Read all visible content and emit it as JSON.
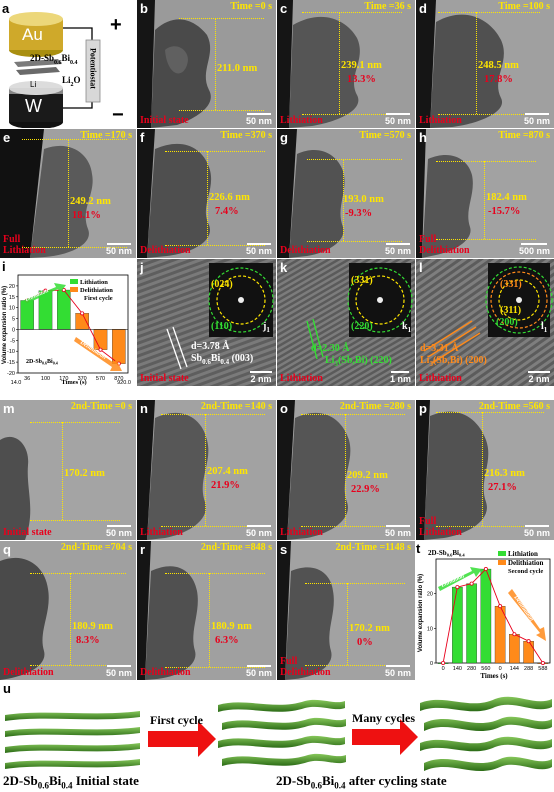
{
  "schematic": {
    "label": "a",
    "au": "Au",
    "material": "2D-Sb",
    "material_sub1": "0.6",
    "material_mid": "Bi",
    "material_sub2": "0.4",
    "li": "Li",
    "li2o": "Li",
    "li2o_sub": "2",
    "li2o_end": "O",
    "w": "W",
    "potentiostat": "Potentiostat",
    "plus": "+",
    "minus": "−"
  },
  "panels_row1": [
    {
      "label": "b",
      "time": "Time =0 s",
      "length": "211.0 nm",
      "pct": "",
      "state": "Initial state",
      "scale": "50 nm"
    },
    {
      "label": "c",
      "time": "Time =36 s",
      "length": "239.1 nm",
      "pct": "13.3%",
      "state": "Lithiation",
      "scale": "50 nm"
    },
    {
      "label": "d",
      "time": "Time =100 s",
      "length": "248.5 nm",
      "pct": "17.8%",
      "state": "Lithiation",
      "scale": "50 nm"
    }
  ],
  "panels_row2": [
    {
      "label": "e",
      "time": "Time =170 s",
      "length": "249.2 nm",
      "pct": "18.1%",
      "state": "Full\nLithiation",
      "scale": "50 nm"
    },
    {
      "label": "f",
      "time": "Time =370 s",
      "length": "226.6 nm",
      "pct": "7.4%",
      "state": "Delithiation",
      "scale": "50 nm"
    },
    {
      "label": "g",
      "time": "Time =570 s",
      "length": "193.0 nm",
      "pct": "-9.3%",
      "state": "Delithiation",
      "scale": "50 nm"
    },
    {
      "label": "h",
      "time": "Time =870 s",
      "length": "182.4 nm",
      "pct": "-15.7%",
      "state": "Full\nDelithiation",
      "scale": "500 nm"
    }
  ],
  "hrtem": [
    {
      "label": "j",
      "sub_label": "j",
      "sub_label_idx": "1",
      "ring_a": "(024)",
      "ring_b": "(110)",
      "d_spacing": "d=3.78 Å",
      "phase": "Sb",
      "phase_sub1": "0.6",
      "phase_mid": "Bi",
      "phase_sub2": "0.4",
      "phase_end": " (003)",
      "state": "Initial state",
      "scale": "2 nm"
    },
    {
      "label": "k",
      "sub_label": "k",
      "sub_label_idx": "1",
      "ring_a": "(331)",
      "ring_b": "(220)",
      "d_spacing": "d=2.30 Å",
      "phase": "Li",
      "phase_sub1": "3",
      "phase_mid": "(Sb,Bi) (220)",
      "phase_sub2": "",
      "phase_end": "",
      "state": "Lithiation",
      "scale": "1 nm"
    },
    {
      "label": "l",
      "sub_label": "l",
      "sub_label_idx": "1",
      "ring_a": "(331)",
      "ring_b": "(200)",
      "ring_c": "(311)",
      "d_spacing": "d=3.31 Å",
      "phase": "Li",
      "phase_sub1": "3",
      "phase_mid": "(Sb,Bi) (200)",
      "phase_sub2": "",
      "phase_end": "",
      "state": "Lithiation",
      "scale": "2 nm"
    }
  ],
  "panels_row4": [
    {
      "label": "m",
      "time": "2nd-Time =0 s",
      "length": "170.2 nm",
      "pct": "",
      "state": "Initial state",
      "scale": "50 nm"
    },
    {
      "label": "n",
      "time": "2nd-Time =140 s",
      "length": "207.4 nm",
      "pct": "21.9%",
      "state": "Lithiation",
      "scale": "50 nm"
    },
    {
      "label": "o",
      "time": "2nd-Time =280 s",
      "length": "209.2 nm",
      "pct": "22.9%",
      "state": "Lithiation",
      "scale": "50 nm"
    },
    {
      "label": "p",
      "time": "2nd-Time =560 s",
      "length": "216.3 nm",
      "pct": "27.1%",
      "state": "Full\nLithiation",
      "scale": "50 nm"
    }
  ],
  "panels_row5": [
    {
      "label": "q",
      "time": "2nd-Time =704 s",
      "length": "180.9 nm",
      "pct": "8.3%",
      "state": "Delithiation",
      "scale": "50 nm"
    },
    {
      "label": "r",
      "time": "2nd-Time =848 s",
      "length": "180.9 nm",
      "pct": "6.3%",
      "state": "Delithiation",
      "scale": "50 nm"
    },
    {
      "label": "s",
      "time": "2nd-Time =1148 s",
      "length": "170.2 nm",
      "pct": "0%",
      "state": "Full\nDelithiation",
      "scale": "50 nm"
    }
  ],
  "chart_data": [
    {
      "panel": "i",
      "type": "bar",
      "categories": [
        "36",
        "100",
        "170",
        "370",
        "570",
        "870"
      ],
      "series": [
        {
          "name": "Lithiation",
          "values": [
            13.3,
            17.8,
            18.1,
            null,
            null,
            null
          ],
          "color": "#33dd33"
        },
        {
          "name": "Delithiation",
          "values": [
            null,
            null,
            null,
            7.4,
            -9.3,
            -15.7
          ],
          "color": "#ff8a1a"
        }
      ],
      "line_values": [
        13.3,
        17.8,
        18.1,
        7.4,
        -9.3,
        -15.7
      ],
      "ylabel": "Volume expansion ratio (%)",
      "xlabel": "Times (s)",
      "x_start": "14.0",
      "x_end": "920.0",
      "yticks": [
        "20",
        "15",
        "10",
        "5",
        "0",
        "-5",
        "-10",
        "-15",
        "-20"
      ],
      "ylim": [
        -20,
        25
      ],
      "legend": [
        "Lithiation",
        "Delithiation"
      ],
      "subtitle": "First cycle",
      "material": "2D-Sb",
      "material_sub1": "0.6",
      "material_mid": "Bi",
      "material_sub2": "0.4",
      "arrow_up": "Lithiation",
      "arrow_down": "Delithiation"
    },
    {
      "panel": "t",
      "type": "bar",
      "categories": [
        "0",
        "140",
        "280",
        "560",
        "0",
        "144",
        "288",
        "588"
      ],
      "series": [
        {
          "name": "Lithiation",
          "values": [
            0,
            21.9,
            22.9,
            27.1,
            null,
            null,
            null,
            null
          ],
          "color": "#33dd33"
        },
        {
          "name": "Delithiation",
          "values": [
            null,
            null,
            null,
            null,
            16.4,
            8.3,
            6.3,
            0
          ],
          "color": "#ff8a1a"
        }
      ],
      "line_values": [
        0,
        21.9,
        22.9,
        27.1,
        16.4,
        8.3,
        6.3,
        0
      ],
      "ylabel": "Volume expansion ratio (%)",
      "xlabel": "Times (s)",
      "yticks": [
        "0",
        "10",
        "20"
      ],
      "ylim": [
        0,
        30
      ],
      "legend": [
        "Lithiation",
        "Delithiation"
      ],
      "subtitle": "Second cycle",
      "material": "2D-Sb",
      "material_sub1": "0.6",
      "material_mid": "Bi",
      "material_sub2": "0.4",
      "arrow_up": "Lithiation",
      "arrow_down": "Delithiation"
    }
  ],
  "bottom": {
    "label": "u",
    "arrow1": "First cycle",
    "arrow2": "Many cycles",
    "left_caption_a": "2D-Sb",
    "left_caption_sub1": "0.6",
    "left_caption_b": "Bi",
    "left_caption_sub2": "0.4",
    "left_caption_c": " Initial state",
    "right_caption_a": "2D-Sb",
    "right_caption_sub1": "0.6",
    "right_caption_b": "Bi",
    "right_caption_sub2": "0.4",
    "right_caption_c": " after cycling state"
  }
}
